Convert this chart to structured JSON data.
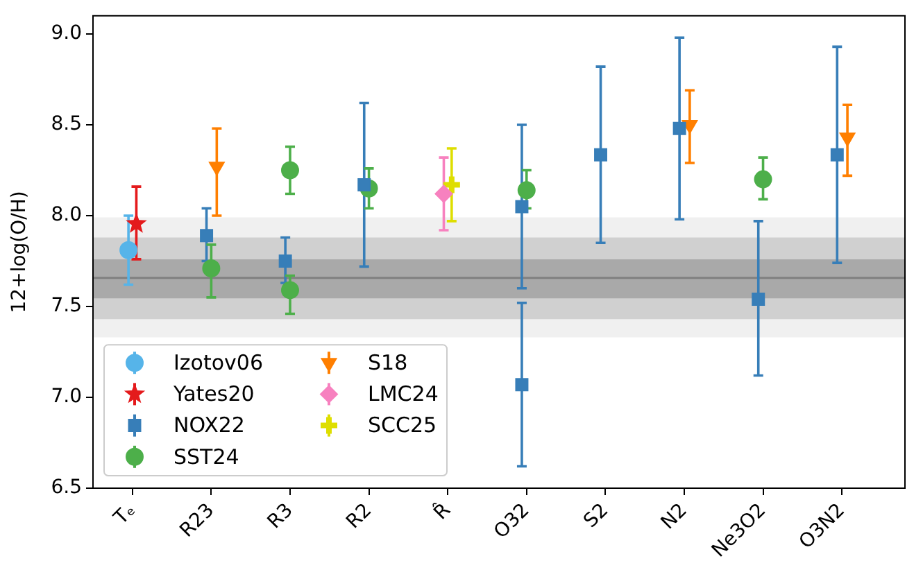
{
  "chart_data": {
    "type": "scatter",
    "ylabel": "12+log(O/H)",
    "categories": [
      "Tₑ",
      "R23",
      "R3",
      "R2",
      "R̂",
      "O32",
      "S2",
      "N2",
      "Ne3O2",
      "O3N2"
    ],
    "ylim": [
      6.5,
      9.1
    ],
    "yticks": [
      6.5,
      {
        "value": 7,
        "label": "7.0"
      },
      7.5,
      {
        "value": 8,
        "label": "8.0"
      },
      8.5,
      {
        "value": 9,
        "label": "9.0"
      }
    ],
    "grid": false,
    "legend": "bottom left",
    "bands": [
      {
        "axis": "y",
        "from": 7.33,
        "to": 7.99,
        "color": "#f0f0f0"
      },
      {
        "axis": "y",
        "from": 7.43,
        "to": 7.88,
        "color": "#d0d0d0"
      },
      {
        "axis": "y",
        "from": 7.545,
        "to": 7.76,
        "color": "#a9a9a9"
      }
    ],
    "ref_lines": [
      {
        "axis": "y",
        "value": 7.657,
        "color": "#808080"
      }
    ],
    "series": [
      {
        "name": "Izotov06",
        "color": "#56b4e9",
        "marker": "circle",
        "x": [
          "Tₑ"
        ],
        "values": [
          7.81
        ],
        "errors": [
          [
            7.62,
            8.0
          ]
        ]
      },
      {
        "name": "Yates20",
        "color": "#e41a1c",
        "marker": "star",
        "x": [
          "Tₑ"
        ],
        "values": [
          7.955
        ],
        "errors": [
          [
            7.76,
            8.16
          ]
        ]
      },
      {
        "name": "NOX22",
        "color": "#377eb8",
        "marker": "square",
        "x": [
          "R23",
          "R3",
          "R2",
          "O32",
          "O32",
          "S2",
          "N2",
          "Ne3O2",
          "O3N2"
        ],
        "values": [
          7.89,
          7.75,
          8.17,
          8.05,
          7.07,
          8.335,
          8.48,
          7.54,
          8.335
        ],
        "errors": [
          [
            7.75,
            8.04
          ],
          [
            7.63,
            7.88
          ],
          [
            7.72,
            8.62
          ],
          [
            7.6,
            8.5
          ],
          [
            6.62,
            7.52
          ],
          [
            7.85,
            8.82
          ],
          [
            7.98,
            8.98
          ],
          [
            7.12,
            7.97
          ],
          [
            7.74,
            8.93
          ]
        ]
      },
      {
        "name": "SST24",
        "color": "#4daf4a",
        "marker": "circle",
        "x": [
          "R23",
          "R3",
          "R3",
          "R2",
          "O32",
          "Ne3O2"
        ],
        "values": [
          7.71,
          8.25,
          7.59,
          8.15,
          8.14,
          8.2
        ],
        "errors": [
          [
            7.55,
            7.84
          ],
          [
            8.12,
            8.38
          ],
          [
            7.46,
            7.67
          ],
          [
            8.04,
            8.26
          ],
          [
            8.04,
            8.25
          ],
          [
            8.09,
            8.32
          ]
        ]
      },
      {
        "name": "S18",
        "color": "#ff7f00",
        "marker": "triangle",
        "x": [
          "R23",
          "N2",
          "O3N2"
        ],
        "values": [
          8.27,
          8.5,
          8.43
        ],
        "errors": [
          [
            8.0,
            8.48
          ],
          [
            8.29,
            8.69
          ],
          [
            8.22,
            8.61
          ]
        ]
      },
      {
        "name": "LMC24",
        "color": "#f781bf",
        "marker": "diamond",
        "x": [
          "R̂"
        ],
        "values": [
          8.12
        ],
        "errors": [
          [
            7.92,
            8.32
          ]
        ]
      },
      {
        "name": "SCC25",
        "color": "#dede00",
        "marker": "cross",
        "x": [
          "R̂"
        ],
        "values": [
          8.17
        ],
        "errors": [
          [
            7.97,
            8.37
          ]
        ]
      }
    ]
  }
}
